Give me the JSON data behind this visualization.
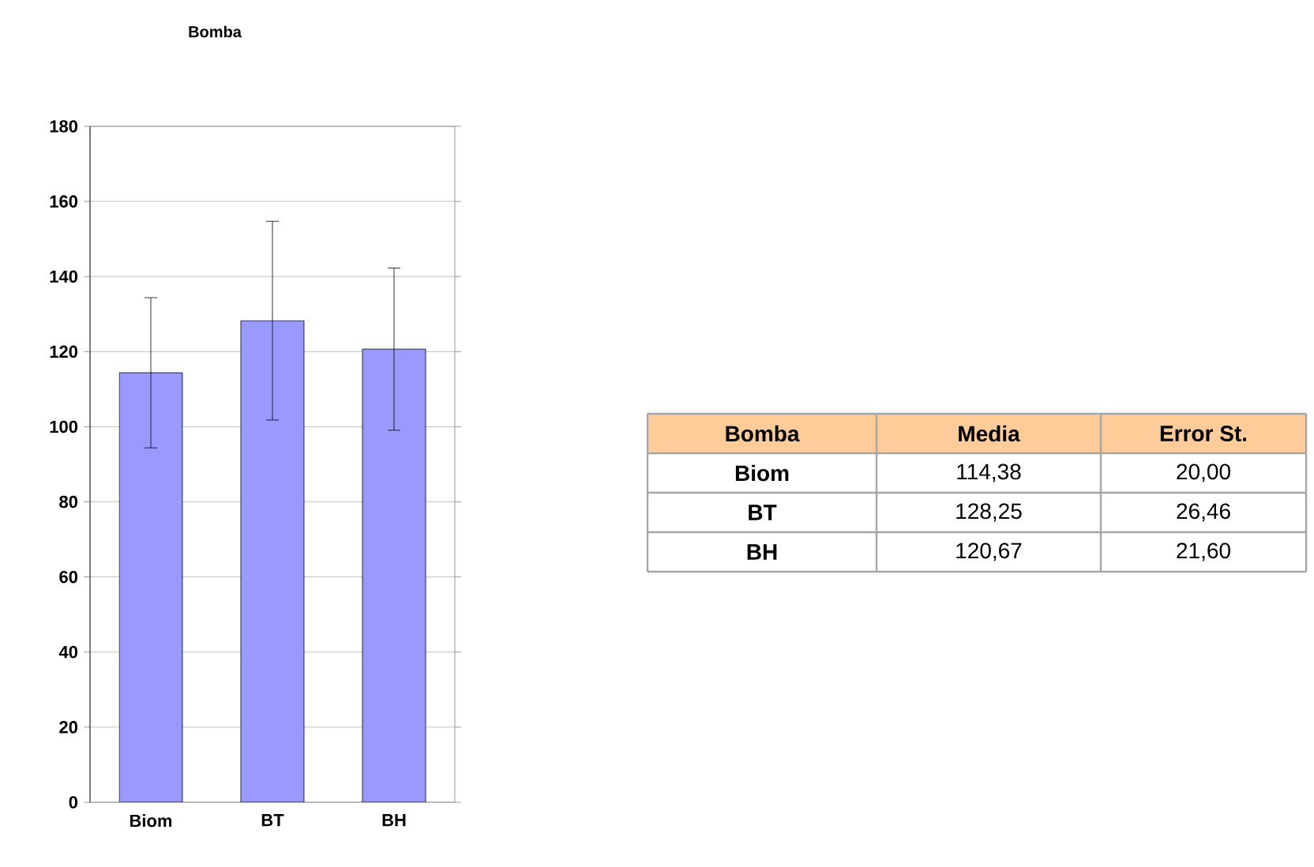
{
  "chart_data": {
    "type": "bar",
    "title": "Bomba",
    "categories": [
      "Biom",
      "BT",
      "BH"
    ],
    "values": [
      114.38,
      128.25,
      120.67
    ],
    "errors": [
      20.0,
      26.46,
      21.6
    ],
    "color": "#9999ff",
    "ylim": [
      0,
      180
    ],
    "yticks": [
      0,
      20,
      40,
      60,
      80,
      100,
      120,
      140,
      160,
      180
    ],
    "grid": "y",
    "annotations": [
      "Bomba",
      "Media",
      "Error St.",
      "114,38",
      "20,00",
      "128,25",
      "26,46",
      "120,67",
      "21,60"
    ]
  }
}
